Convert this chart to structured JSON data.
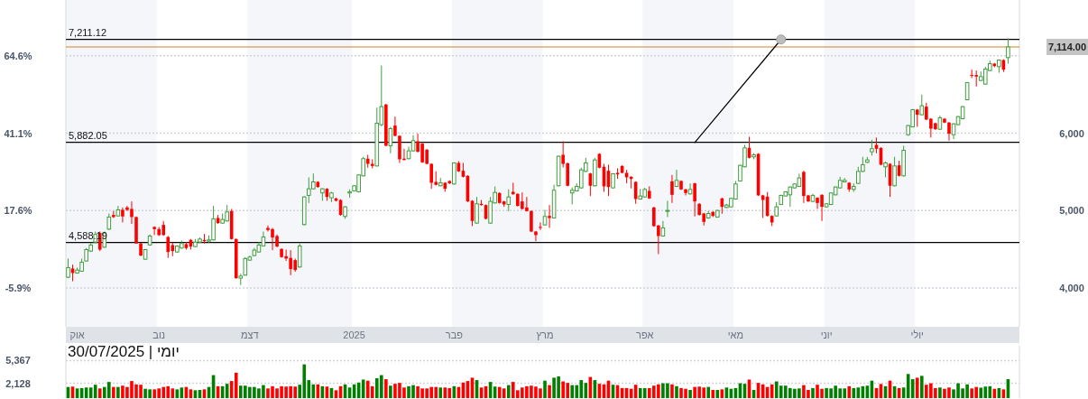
{
  "chart_data": [
    {
      "type": "candlestick",
      "categories": [
        null,
        null,
        "אוק",
        null,
        null,
        null,
        null,
        null,
        null,
        null,
        null,
        null,
        null,
        null,
        null,
        null,
        null,
        null,
        null,
        null,
        "נוב",
        null,
        null,
        null,
        null,
        null,
        null,
        null,
        null,
        null,
        null,
        null,
        null,
        null,
        null,
        null,
        null,
        null,
        null,
        null,
        "דצמ",
        null,
        null,
        null,
        null,
        null,
        null,
        null,
        null,
        null,
        null,
        null,
        null,
        null,
        null,
        null,
        null,
        null,
        null,
        null,
        null,
        null,
        null,
        "2025",
        null,
        null,
        null,
        null,
        null,
        null,
        null,
        null,
        null,
        null,
        null,
        null,
        null,
        null,
        null,
        null,
        null,
        null,
        null,
        null,
        null,
        "פבר",
        null,
        null,
        null,
        null,
        null,
        null,
        null,
        null,
        null,
        null,
        null,
        null,
        null,
        null,
        null,
        null,
        null,
        null,
        null,
        "מרץ",
        null,
        null,
        null,
        null,
        null,
        null,
        null,
        null,
        null,
        null,
        null,
        null,
        null,
        null,
        null,
        null,
        null,
        null,
        null,
        null,
        null,
        "אפר",
        null,
        null,
        null,
        null,
        null,
        null,
        null,
        null,
        null,
        null,
        null,
        null,
        null,
        null,
        null,
        null,
        null,
        null,
        null,
        "מאי",
        null,
        null,
        null,
        null,
        null,
        null,
        null,
        null,
        null,
        null,
        null,
        null,
        null,
        null,
        null,
        null,
        null,
        null,
        null,
        "יוני",
        null,
        null,
        null,
        null,
        null,
        null,
        null,
        null,
        null,
        null,
        null,
        null,
        null,
        null,
        null,
        null,
        null,
        null,
        null,
        "יולי",
        null,
        null,
        null,
        null,
        null,
        null,
        null,
        null,
        null,
        null,
        null,
        null,
        null,
        null,
        null,
        null,
        null,
        null,
        null,
        null
      ],
      "ohlc": [
        [
          4140,
          4381,
          4128,
          4264
        ],
        [
          4253,
          4303,
          4089,
          4194
        ],
        [
          4194,
          4264,
          4186,
          4233
        ],
        [
          4218,
          4381,
          4210,
          4334
        ],
        [
          4350,
          4517,
          4342,
          4497
        ],
        [
          4478,
          4583,
          4466,
          4556
        ],
        [
          4594,
          4730,
          4575,
          4692
        ],
        [
          4711,
          4730,
          4478,
          4497
        ],
        [
          4528,
          4730,
          4520,
          4711
        ],
        [
          4761,
          4963,
          4750,
          4917
        ],
        [
          4944,
          4995,
          4905,
          4917
        ],
        [
          4932,
          5061,
          4925,
          5010
        ],
        [
          5010,
          5041,
          4847,
          4925
        ],
        [
          5041,
          5061,
          4995,
          5010
        ],
        [
          5022,
          5119,
          4828,
          4917
        ],
        [
          4917,
          4925,
          4575,
          4575
        ],
        [
          4575,
          4583,
          4412,
          4420
        ],
        [
          4373,
          4505,
          4365,
          4497
        ],
        [
          4556,
          4692,
          4548,
          4672
        ],
        [
          4789,
          4797,
          4684,
          4761
        ],
        [
          4761,
          4789,
          4672,
          4684
        ],
        [
          4816,
          4866,
          4676,
          4684
        ],
        [
          4660,
          4672,
          4389,
          4466
        ],
        [
          4556,
          4583,
          4412,
          4478
        ],
        [
          4466,
          4552,
          4458,
          4544
        ],
        [
          4517,
          4614,
          4510,
          4575
        ],
        [
          4567,
          4594,
          4497,
          4517
        ],
        [
          4622,
          4633,
          4497,
          4536
        ],
        [
          4536,
          4633,
          4528,
          4594
        ],
        [
          4594,
          4653,
          4586,
          4633
        ],
        [
          4622,
          4699,
          4575,
          4606
        ],
        [
          4606,
          4680,
          4583,
          4622
        ],
        [
          4622,
          5061,
          4614,
          4894
        ],
        [
          4905,
          4944,
          4830,
          4839
        ],
        [
          4839,
          4963,
          4830,
          4886
        ],
        [
          4866,
          5072,
          4858,
          4983
        ],
        [
          4995,
          5022,
          4625,
          4633
        ],
        [
          4633,
          4640,
          4120,
          4128
        ],
        [
          4128,
          4186,
          4039,
          4155
        ],
        [
          4167,
          4400,
          4160,
          4381
        ],
        [
          4361,
          4420,
          4353,
          4400
        ],
        [
          4420,
          4517,
          4412,
          4490
        ],
        [
          4466,
          4594,
          4458,
          4556
        ],
        [
          4544,
          4730,
          4536,
          4660
        ],
        [
          4777,
          4808,
          4730,
          4750
        ],
        [
          4761,
          4777,
          4490,
          4653
        ],
        [
          4672,
          4692,
          4528,
          4536
        ],
        [
          4505,
          4513,
          4392,
          4400
        ],
        [
          4412,
          4497,
          4350,
          4381
        ],
        [
          4389,
          4490,
          4167,
          4245
        ],
        [
          4361,
          4381,
          4210,
          4233
        ],
        [
          4272,
          4575,
          4264,
          4544
        ],
        [
          4820,
          5185,
          4808,
          5177
        ],
        [
          5197,
          5430,
          5099,
          5282
        ],
        [
          5282,
          5480,
          5274,
          5371
        ],
        [
          5371,
          5379,
          5297,
          5305
        ],
        [
          5228,
          5290,
          5127,
          5282
        ],
        [
          5282,
          5290,
          5127,
          5177
        ],
        [
          5166,
          5243,
          5111,
          5228
        ],
        [
          5158,
          5166,
          5119,
          5127
        ],
        [
          5138,
          5146,
          4936,
          4944
        ],
        [
          4925,
          5057,
          4894,
          5049
        ],
        [
          5228,
          5274,
          5166,
          5243
        ],
        [
          5255,
          5329,
          5247,
          5321
        ],
        [
          5243,
          5469,
          5235,
          5461
        ],
        [
          5449,
          5694,
          5441,
          5671
        ],
        [
          5671,
          5721,
          5554,
          5604
        ],
        [
          5604,
          5663,
          5546,
          5577
        ],
        [
          5577,
          6331,
          5570,
          6129
        ],
        [
          6110,
          6875,
          6090,
          6343
        ],
        [
          6370,
          6380,
          5830,
          5838
        ],
        [
          5838,
          6082,
          5740,
          6059
        ],
        [
          6098,
          6214,
          5960,
          5966
        ],
        [
          5966,
          5974,
          5616,
          5663
        ],
        [
          5671,
          5799,
          5647,
          5655
        ],
        [
          5671,
          5826,
          5663,
          5772
        ],
        [
          5772,
          5974,
          5764,
          5904
        ],
        [
          5896,
          5993,
          5752,
          5760
        ],
        [
          5865,
          5873,
          5616,
          5624
        ],
        [
          5787,
          5795,
          5596,
          5604
        ],
        [
          5604,
          5612,
          5282,
          5360
        ],
        [
          5371,
          5507,
          5325,
          5333
        ],
        [
          5321,
          5422,
          5313,
          5360
        ],
        [
          5360,
          5368,
          5243,
          5282
        ],
        [
          5383,
          5391,
          5344,
          5352
        ],
        [
          5344,
          5624,
          5336,
          5616
        ],
        [
          5616,
          5640,
          5499,
          5507
        ],
        [
          5515,
          5616,
          5429,
          5437
        ],
        [
          5449,
          5457,
          5111,
          5119
        ],
        [
          5127,
          5135,
          4800,
          4866
        ],
        [
          4839,
          5177,
          4831,
          5088
        ],
        [
          5088,
          5138,
          5064,
          5072
        ],
        [
          5072,
          5080,
          4886,
          4894
        ],
        [
          4839,
          5177,
          4831,
          5119
        ],
        [
          5099,
          5313,
          5091,
          5235
        ],
        [
          5228,
          5236,
          5091,
          5099
        ],
        [
          5119,
          5127,
          5049,
          5080
        ],
        [
          5080,
          5274,
          4995,
          5177
        ],
        [
          5243,
          5360,
          5204,
          5212
        ],
        [
          5216,
          5224,
          5053,
          5061
        ],
        [
          5119,
          5235,
          5014,
          5022
        ],
        [
          5041,
          5177,
          4987,
          4995
        ],
        [
          4995,
          5003,
          4722,
          4730
        ],
        [
          4730,
          4738,
          4606,
          4684
        ],
        [
          4789,
          4847,
          4750,
          4781
        ],
        [
          4816,
          5010,
          4808,
          4925
        ],
        [
          4932,
          5072,
          4777,
          4905
        ],
        [
          4905,
          5333,
          4897,
          5263
        ],
        [
          5321,
          5710,
          5313,
          5702
        ],
        [
          5721,
          5896,
          5558,
          5604
        ],
        [
          5612,
          5620,
          5313,
          5321
        ],
        [
          5228,
          5300,
          5080,
          5263
        ],
        [
          5255,
          5352,
          5247,
          5313
        ],
        [
          5294,
          5554,
          5286,
          5527
        ],
        [
          5507,
          5682,
          5499,
          5616
        ],
        [
          5480,
          5488,
          5189,
          5321
        ],
        [
          5321,
          5682,
          5313,
          5655
        ],
        [
          5733,
          5741,
          5546,
          5554
        ],
        [
          5566,
          5604,
          5243,
          5313
        ],
        [
          5515,
          5593,
          5189,
          5305
        ],
        [
          5294,
          5484,
          5286,
          5476
        ],
        [
          5488,
          5546,
          5410,
          5469
        ],
        [
          5577,
          5585,
          5480,
          5488
        ],
        [
          5488,
          5527,
          5352,
          5430
        ],
        [
          5437,
          5445,
          5286,
          5410
        ],
        [
          5371,
          5379,
          5088,
          5150
        ],
        [
          5150,
          5282,
          5142,
          5189
        ],
        [
          5177,
          5294,
          5169,
          5274
        ],
        [
          5255,
          5313,
          5150,
          5158
        ],
        [
          5041,
          5049,
          4792,
          4800
        ],
        [
          4808,
          4816,
          4439,
          4672
        ],
        [
          4672,
          4866,
          4664,
          4777
        ],
        [
          4995,
          5127,
          4917,
          5002
        ],
        [
          5379,
          5461,
          5099,
          5204
        ],
        [
          5313,
          5527,
          5305,
          5391
        ],
        [
          5383,
          5391,
          5266,
          5274
        ],
        [
          5274,
          5282,
          5197,
          5228
        ],
        [
          5216,
          5352,
          5208,
          5274
        ],
        [
          5352,
          5360,
          4925,
          5119
        ],
        [
          5088,
          5096,
          4936,
          4944
        ],
        [
          4963,
          4971,
          4808,
          4855
        ],
        [
          4905,
          4995,
          4897,
          4963
        ],
        [
          4983,
          4991,
          4917,
          4932
        ],
        [
          4917,
          5010,
          4909,
          5002
        ],
        [
          5158,
          5166,
          4960,
          5049
        ],
        [
          5041,
          5088,
          5033,
          5072
        ],
        [
          5049,
          5166,
          5041,
          5158
        ],
        [
          5150,
          5383,
          5142,
          5344
        ],
        [
          5383,
          5593,
          5375,
          5585
        ],
        [
          5566,
          5849,
          5558,
          5810
        ],
        [
          5810,
          5954,
          5674,
          5682
        ],
        [
          5694,
          5741,
          5663,
          5721
        ],
        [
          5733,
          5741,
          5189,
          5197
        ],
        [
          5197,
          5205,
          4905,
          5138
        ],
        [
          5181,
          5240,
          4924,
          4932
        ],
        [
          4932,
          4940,
          4800,
          4847
        ],
        [
          4932,
          5111,
          4924,
          5049
        ],
        [
          5080,
          5205,
          5072,
          5197
        ],
        [
          5189,
          5251,
          5181,
          5243
        ],
        [
          5204,
          5313,
          5049,
          5305
        ],
        [
          5294,
          5352,
          5286,
          5344
        ],
        [
          5313,
          5476,
          5305,
          5422
        ],
        [
          5500,
          5515,
          5099,
          5189
        ],
        [
          5197,
          5205,
          5111,
          5119
        ],
        [
          5119,
          5216,
          5111,
          5197
        ],
        [
          5166,
          5174,
          5022,
          5099
        ],
        [
          5204,
          5212,
          4866,
          5049
        ],
        [
          5049,
          5096,
          5041,
          5088
        ],
        [
          5080,
          5236,
          5072,
          5228
        ],
        [
          5204,
          5313,
          5196,
          5305
        ],
        [
          5294,
          5437,
          5286,
          5391
        ],
        [
          5371,
          5422,
          5363,
          5391
        ],
        [
          5360,
          5368,
          5243,
          5274
        ],
        [
          5274,
          5352,
          5243,
          5313
        ],
        [
          5352,
          5566,
          5344,
          5507
        ],
        [
          5507,
          5694,
          5499,
          5593
        ],
        [
          5624,
          5694,
          5616,
          5655
        ],
        [
          5760,
          5915,
          5710,
          5799
        ],
        [
          5849,
          5943,
          5741,
          5799
        ],
        [
          5810,
          5818,
          5585,
          5593
        ],
        [
          5566,
          5635,
          5430,
          5616
        ],
        [
          5604,
          5612,
          5177,
          5321
        ],
        [
          5321,
          5694,
          5313,
          5577
        ],
        [
          5585,
          5643,
          5441,
          5449
        ],
        [
          5449,
          5838,
          5441,
          5779
        ],
        [
          5981,
          6106,
          5966,
          6098
        ],
        [
          6082,
          6312,
          6074,
          6304
        ],
        [
          6304,
          6312,
          6082,
          6238
        ],
        [
          6238,
          6498,
          6230,
          6354
        ],
        [
          6343,
          6393,
          6168,
          6176
        ],
        [
          6187,
          6195,
          5943,
          6059
        ],
        [
          6129,
          6137,
          6043,
          6051
        ],
        [
          6051,
          6226,
          6043,
          6199
        ],
        [
          6187,
          6195,
          6129,
          6137
        ],
        [
          6137,
          6145,
          5904,
          5993
        ],
        [
          5981,
          6129,
          5924,
          6121
        ],
        [
          6110,
          6222,
          6102,
          6214
        ],
        [
          6187,
          6351,
          6179,
          6343
        ],
        [
          6432,
          6661,
          6424,
          6653
        ],
        [
          6751,
          6821,
          6712,
          6743
        ],
        [
          6751,
          6809,
          6603,
          6731
        ],
        [
          6681,
          6797,
          6673,
          6731
        ],
        [
          6634,
          6859,
          6626,
          6828
        ],
        [
          6809,
          6937,
          6801,
          6898
        ],
        [
          6898,
          6906,
          6852,
          6867
        ],
        [
          6859,
          6953,
          6781,
          6945
        ],
        [
          6945,
          6953,
          6790,
          6821
        ],
        [
          6976,
          7225,
          6898,
          7114
        ]
      ],
      "series": [
        {
          "type": "line",
          "color": "#000000",
          "values": [
            null,
            null,
            null,
            null,
            null,
            null,
            null,
            null,
            null,
            null,
            null,
            null,
            null,
            null,
            null,
            null,
            null,
            null,
            null,
            null,
            null,
            null,
            null,
            null,
            null,
            null,
            null,
            null,
            null,
            null,
            null,
            null,
            null,
            null,
            null,
            null,
            null,
            null,
            null,
            null,
            null,
            null,
            null,
            null,
            null,
            null,
            null,
            null,
            null,
            null,
            null,
            null,
            null,
            null,
            null,
            null,
            null,
            null,
            null,
            null,
            null,
            null,
            null,
            null,
            null,
            null,
            null,
            null,
            null,
            null,
            null,
            null,
            null,
            null,
            null,
            null,
            null,
            null,
            null,
            null,
            null,
            null,
            null,
            null,
            null,
            null,
            null,
            null,
            null,
            null,
            null,
            null,
            null,
            null,
            null,
            null,
            null,
            null,
            null,
            null,
            null,
            null,
            null,
            null,
            null,
            null,
            null,
            null,
            null,
            null,
            null,
            null,
            null,
            null,
            null,
            null,
            null,
            null,
            null,
            null,
            null,
            null,
            null,
            null,
            null,
            null,
            null,
            null,
            null,
            null,
            null,
            null,
            null,
            null,
            null,
            null,
            null,
            null,
            5880,
            null,
            null,
            null,
            null,
            null,
            null,
            null,
            null,
            null,
            null,
            null,
            null,
            null,
            null,
            null,
            null,
            null,
            null,
            7210,
            null,
            null,
            null,
            null,
            null,
            null,
            null,
            null,
            null,
            null,
            null,
            null,
            null,
            null,
            null,
            null,
            null,
            null,
            null,
            null,
            null,
            null,
            null,
            null,
            null,
            null,
            null,
            null,
            null,
            null,
            null,
            null,
            null,
            null,
            null,
            null,
            null,
            null,
            null,
            null,
            null,
            null,
            null,
            null,
            null,
            null,
            null,
            null,
            null,
            null
          ]
        }
      ],
      "ylim": [
        3500,
        7720
      ],
      "yticks": [
        {
          "value": 4000,
          "label": "4,000"
        },
        {
          "value": 5000,
          "label": "5,000"
        },
        {
          "value": 6000,
          "label": "6,000"
        },
        {
          "value": 7000,
          "label": null
        }
      ],
      "y2lim": [
        -17.65,
        81.6
      ],
      "y2ticks": [
        {
          "value": -5.9,
          "label": "-5.9%"
        },
        {
          "value": 17.6,
          "label": "17.6%"
        },
        {
          "value": 41.1,
          "label": "41.1%"
        },
        {
          "value": 64.6,
          "label": "64.6%"
        }
      ],
      "grid": "y",
      "ref_lines": [
        {
          "axis": "y",
          "value": 7211.12,
          "label": "7,211.12",
          "color": "#000000"
        },
        {
          "axis": "y",
          "value": 5882.05,
          "label": "5,882.05",
          "color": "#000000"
        },
        {
          "axis": "y",
          "value": 4588.19,
          "label": "4,588.19",
          "color": "#000000"
        },
        {
          "axis": "y",
          "value": 7114,
          "color": "#d2822a"
        }
      ],
      "annotations": [
        "7,114.00"
      ]
    },
    {
      "type": "bar",
      "title": "יומי | 30/07/2025",
      "categories": [
        null,
        null,
        null,
        null,
        null,
        null,
        null,
        null,
        null,
        null,
        null,
        null,
        null,
        null,
        null,
        null,
        null,
        null,
        null,
        null,
        null,
        null,
        null,
        null,
        null,
        null,
        null,
        null,
        null,
        null,
        null,
        null,
        null,
        null,
        null,
        null,
        null,
        null,
        null,
        null,
        null,
        null,
        null,
        null,
        null,
        null,
        null,
        null,
        null,
        null,
        null,
        null,
        null,
        null,
        null,
        null,
        null,
        null,
        null,
        null,
        null,
        null,
        null,
        null,
        null,
        null,
        null,
        null,
        null,
        null,
        null,
        null,
        null,
        null,
        null,
        null,
        null,
        null,
        null,
        null,
        null,
        null,
        null,
        null,
        null,
        null,
        null,
        null,
        null,
        null,
        null,
        null,
        null,
        null,
        null,
        null,
        null,
        null,
        null,
        null,
        null,
        null,
        null,
        null,
        null,
        null,
        null,
        null,
        null,
        null,
        null,
        null,
        null,
        null,
        null,
        null,
        null,
        null,
        null,
        null,
        null,
        null,
        null,
        null,
        null,
        null,
        null,
        null,
        null,
        null,
        null,
        null,
        null,
        null,
        null,
        null,
        null,
        null,
        null,
        null,
        null,
        null,
        null,
        null,
        null,
        null,
        null,
        null,
        null,
        null,
        null,
        null,
        null,
        null,
        null,
        null,
        null,
        null,
        null,
        null,
        null,
        null,
        null,
        null,
        null,
        null,
        null,
        null,
        null,
        null,
        null,
        null,
        null,
        null,
        null,
        null,
        null,
        null,
        null,
        null,
        null,
        null,
        null,
        null,
        null,
        null,
        null,
        null,
        null,
        null,
        null,
        null,
        null,
        null,
        null,
        null,
        null,
        null,
        null,
        null,
        null,
        null,
        null,
        null,
        null,
        null,
        null,
        null
      ],
      "values": [
        1596,
        1649,
        1384,
        1437,
        1517,
        1517,
        1914,
        1384,
        1596,
        2312,
        1596,
        1596,
        1782,
        1596,
        2444,
        1967,
        1914,
        1331,
        1251,
        1251,
        1384,
        1596,
        1702,
        1384,
        1251,
        1517,
        1596,
        1251,
        1119,
        1172,
        1251,
        1596,
        3292,
        1702,
        1702,
        2047,
        2444,
        3637,
        1782,
        1782,
        1596,
        1596,
        1384,
        1861,
        1384,
        1702,
        1384,
        1702,
        1649,
        1702,
        1649,
        1914,
        4829,
        2577,
        1967,
        1967,
        1702,
        1649,
        1437,
        1119,
        1702,
        1967,
        1517,
        1967,
        2232,
        2656,
        2497,
        1702,
        2842,
        3292,
        2709,
        1782,
        2047,
        2179,
        1517,
        1702,
        1861,
        1702,
        1384,
        1384,
        1596,
        1596,
        1517,
        1517,
        1437,
        1702,
        1596,
        2232,
        2444,
        2921,
        2577,
        1517,
        1702,
        2312,
        1649,
        1596,
        1384,
        1861,
        2312,
        1119,
        1517,
        1702,
        1782,
        1649,
        1384,
        2497,
        1861,
        2921,
        3107,
        2391,
        2179,
        1861,
        1861,
        2577,
        2179,
        3027,
        2577,
        2047,
        1967,
        2497,
        1914,
        1861,
        1437,
        1437,
        1331,
        1914,
        1437,
        1437,
        1437,
        1782,
        1967,
        2126,
        2126,
        1967,
        1702,
        1437,
        1331,
        1172,
        1596,
        1649,
        1517,
        1596,
        1172,
        1172,
        1251,
        1517,
        1331,
        1437,
        2126,
        2047,
        2656,
        1172,
        2179,
        1967,
        1596,
        1967,
        2391,
        1782,
        1782,
        1437,
        1331,
        1384,
        1861,
        1172,
        1437,
        1914,
        1331,
        1437,
        1384,
        1782,
        1384,
        1384,
        1702,
        1437,
        1517,
        1702,
        1782,
        2497,
        1437,
        2020,
        1702,
        2497,
        1702,
        1437,
        1517,
        3451,
        2709,
        2921,
        3186,
        1914,
        2126,
        1437,
        1517,
        1331,
        1517,
        1251,
        2126,
        1384,
        1967,
        1384,
        1596,
        1490,
        1649,
        1702,
        1331,
        1437,
        1251,
        2709
      ],
      "ylim": [
        0,
        7500
      ],
      "yticks": [
        {
          "value": 2128,
          "label": "2,128"
        },
        {
          "value": 5367,
          "label": "5,367"
        }
      ],
      "grid": "y",
      "tick_labels": "y"
    }
  ]
}
